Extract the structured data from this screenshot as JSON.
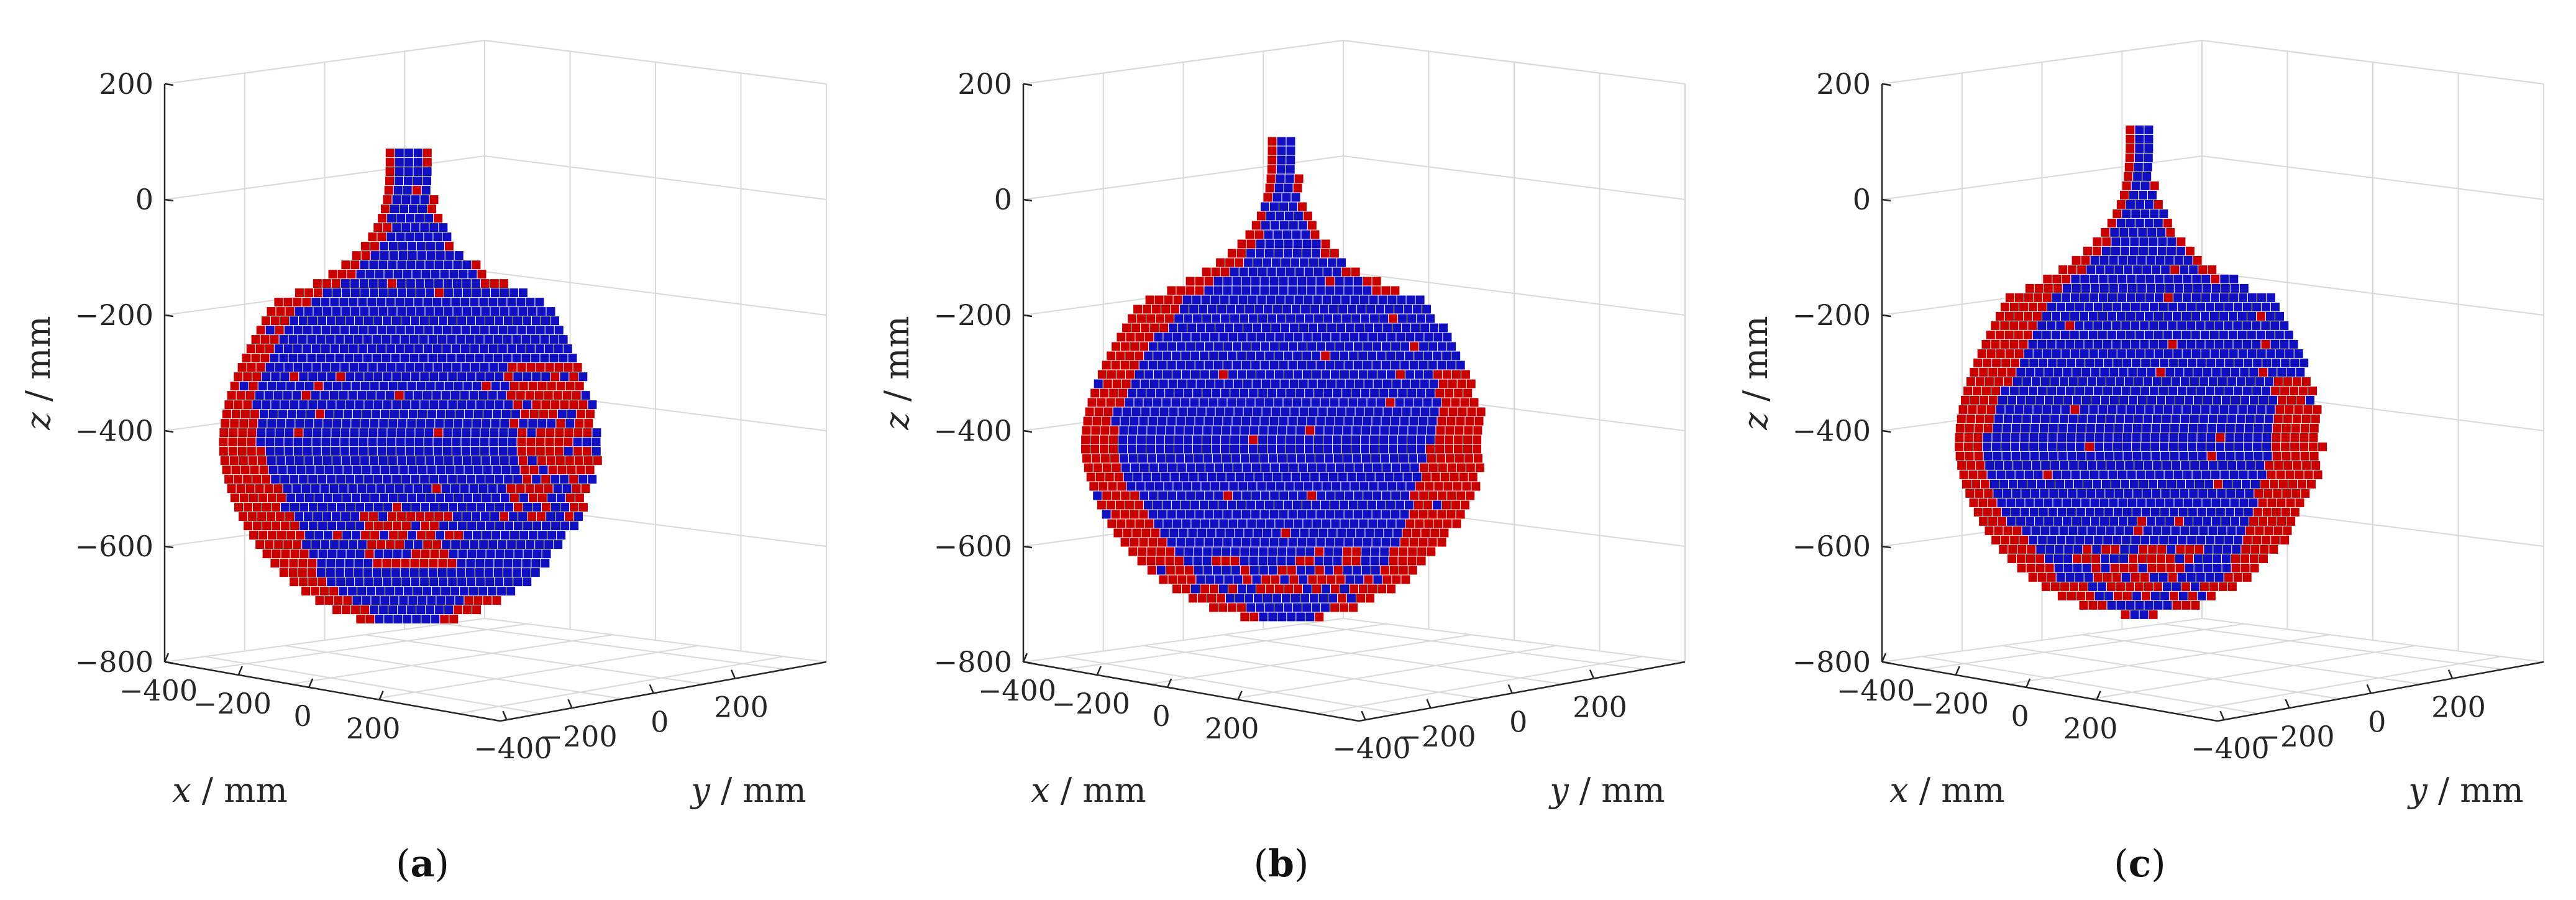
{
  "chart_data": [
    {
      "type": "scatter",
      "caption": "(a)",
      "xlabel": "x / mm",
      "ylabel": "y / mm",
      "zlabel": "z / mm",
      "xticks": [
        "−400",
        "−200",
        "0",
        "200"
      ],
      "yticks": [
        "−400",
        "−200",
        "0",
        "200"
      ],
      "zticks": [
        "200",
        "0",
        "−200",
        "−400",
        "−600",
        "−800"
      ],
      "xlim": [
        -400,
        400
      ],
      "ylim": [
        -400,
        400
      ],
      "zlim": [
        -800,
        200
      ],
      "grid": true,
      "colors": {
        "primary": "#1010c0",
        "secondary": "#c80000"
      },
      "shape": {
        "top_z": 80,
        "bottom_z": -740,
        "max_radius": 310,
        "stem_radius": 35,
        "shoulder_z": -180
      }
    },
    {
      "type": "scatter",
      "caption": "(b)",
      "xlabel": "x / mm",
      "ylabel": "y / mm",
      "zlabel": "z / mm",
      "xticks": [
        "−400",
        "−200",
        "0",
        "200"
      ],
      "yticks": [
        "−400",
        "−200",
        "0",
        "200"
      ],
      "zticks": [
        "200",
        "0",
        "−200",
        "−400",
        "−600",
        "−800"
      ],
      "xlim": [
        -400,
        400
      ],
      "ylim": [
        -400,
        400
      ],
      "zlim": [
        -800,
        200
      ],
      "grid": true,
      "colors": {
        "primary": "#1010c0",
        "secondary": "#c80000"
      },
      "shape": {
        "top_z": 100,
        "bottom_z": -730,
        "max_radius": 330,
        "stem_radius": 22,
        "shoulder_z": -180
      }
    },
    {
      "type": "scatter",
      "caption": "(c)",
      "xlabel": "x / mm",
      "ylabel": "y / mm",
      "zlabel": "z / mm",
      "xticks": [
        "−400",
        "−200",
        "0",
        "200"
      ],
      "yticks": [
        "−400",
        "−200",
        "0",
        "200"
      ],
      "zticks": [
        "200",
        "0",
        "−200",
        "−400",
        "−600",
        "−800"
      ],
      "xlim": [
        -400,
        400
      ],
      "ylim": [
        -400,
        400
      ],
      "zlim": [
        -800,
        200
      ],
      "grid": true,
      "colors": {
        "primary": "#1010c0",
        "secondary": "#c80000"
      },
      "shape": {
        "top_z": 120,
        "bottom_z": -720,
        "max_radius": 300,
        "stem_radius": 18,
        "shoulder_z": -170
      }
    }
  ]
}
